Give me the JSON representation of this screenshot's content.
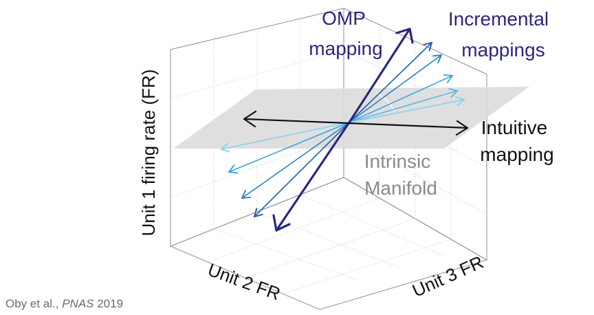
{
  "labels": {
    "omp_line1": "OMP",
    "omp_line2": "mapping",
    "incremental_line1": "Incremental",
    "incremental_line2": "mappings",
    "intuitive_line1": "Intuitive",
    "intuitive_line2": "mapping",
    "manifold_line1": "Intrinsic",
    "manifold_line2": "Manifold",
    "axis_unit1": "Unit 1 firing rate (FR)",
    "axis_unit2": "Unit 2 FR",
    "axis_unit3": "Unit 3 FR"
  },
  "citation": {
    "authors": "Oby et al., ",
    "journal": "PNAS",
    "year": " 2019"
  },
  "colors": {
    "omp": "#2a2780",
    "incremental": [
      "#1f5fa6",
      "#2a82c4",
      "#3ea6db",
      "#7fcaec"
    ],
    "intuitive": "#111111",
    "manifold_plane": "#dcdcdc",
    "manifold_text": "#8a8a8a",
    "axis_text": "#111111",
    "omp_text": "#2a2780"
  }
}
